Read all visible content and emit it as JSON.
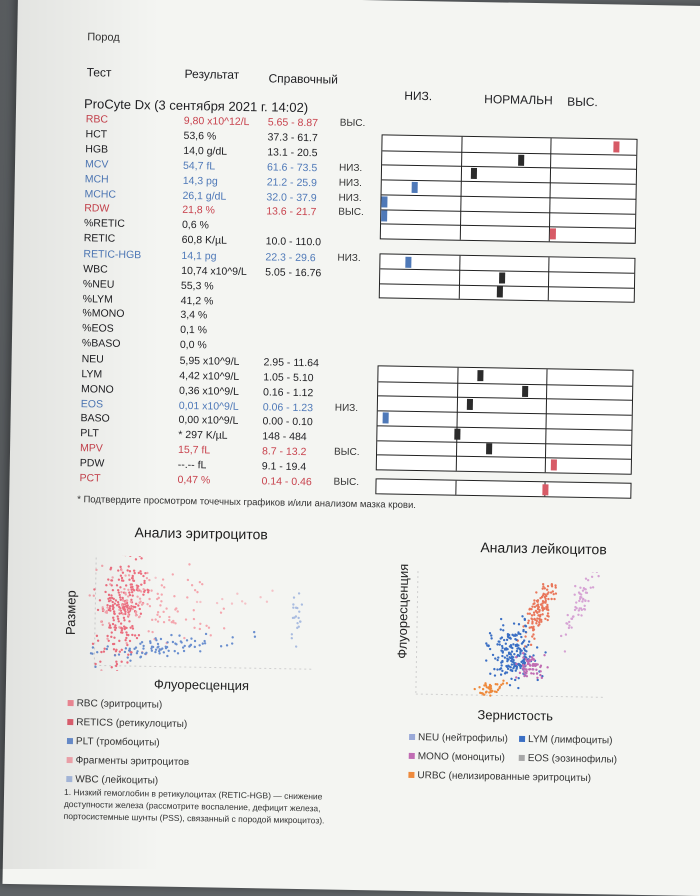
{
  "top_cut_text": "Пород",
  "header": {
    "test": "Тест",
    "result": "Результат",
    "reference": "Справочный",
    "low": "НИЗ.",
    "normal": "НОРМАЛЬН",
    "high": "ВЫС."
  },
  "analyzer_title": "ProCyte Dx (3 сентября 2021 г. 14:02)",
  "rows": [
    {
      "test": "RBC",
      "result": "9,80 x10^12/L",
      "ref": "5.65 - 8.87",
      "flag": "ВЫС.",
      "color": "#c8434e"
    },
    {
      "test": "HCT",
      "result": "53,6 %",
      "ref": "37.3 - 61.7",
      "flag": "",
      "color": "#1e1e22"
    },
    {
      "test": "HGB",
      "result": "14,0 g/dL",
      "ref": "13.1 - 20.5",
      "flag": "",
      "color": "#1e1e22"
    },
    {
      "test": "MCV",
      "result": "54,7 fL",
      "ref": "61.6 - 73.5",
      "flag": "НИЗ.",
      "color": "#4f79b8"
    },
    {
      "test": "MCH",
      "result": "14,3 pg",
      "ref": "21.2 - 25.9",
      "flag": "НИЗ.",
      "color": "#4f79b8"
    },
    {
      "test": "MCHC",
      "result": "26,1 g/dL",
      "ref": "32.0 - 37.9",
      "flag": "НИЗ.",
      "color": "#4f79b8"
    },
    {
      "test": "RDW",
      "result": "21,8 %",
      "ref": "13.6 - 21.7",
      "flag": "ВЫС.",
      "color": "#c8434e"
    },
    {
      "test": "%RETIC",
      "result": "0,6 %",
      "ref": "",
      "flag": "",
      "color": "#1e1e22"
    },
    {
      "test": "RETIC",
      "result": "60,8 K/µL",
      "ref": "10.0 - 110.0",
      "flag": "",
      "color": "#1e1e22"
    },
    {
      "test": "RETIC-HGB",
      "result": "14,1 pg",
      "ref": "22.3 - 29.6",
      "flag": "НИЗ.",
      "color": "#4f79b8"
    },
    {
      "test": "WBC",
      "result": "10,74 x10^9/L",
      "ref": "5.05 - 16.76",
      "flag": "",
      "color": "#1e1e22"
    },
    {
      "test": "%NEU",
      "result": "55,3 %",
      "ref": "",
      "flag": "",
      "color": "#1e1e22"
    },
    {
      "test": "%LYM",
      "result": "41,2 %",
      "ref": "",
      "flag": "",
      "color": "#1e1e22"
    },
    {
      "test": "%MONO",
      "result": "3,4 %",
      "ref": "",
      "flag": "",
      "color": "#1e1e22"
    },
    {
      "test": "%EOS",
      "result": "0,1 %",
      "ref": "",
      "flag": "",
      "color": "#1e1e22"
    },
    {
      "test": "%BASO",
      "result": "0,0 %",
      "ref": "",
      "flag": "",
      "color": "#1e1e22"
    },
    {
      "test": "NEU",
      "result": "5,95 x10^9/L",
      "ref": "2.95 - 11.64",
      "flag": "",
      "color": "#1e1e22"
    },
    {
      "test": "LYM",
      "result": "4,42 x10^9/L",
      "ref": "1.05 - 5.10",
      "flag": "",
      "color": "#1e1e22"
    },
    {
      "test": "MONO",
      "result": "0,36 x10^9/L",
      "ref": "0.16 - 1.12",
      "flag": "",
      "color": "#1e1e22"
    },
    {
      "test": "EOS",
      "result": "0,01 x10^9/L",
      "ref": "0.06 - 1.23",
      "flag": "НИЗ.",
      "color": "#4f79b8"
    },
    {
      "test": "BASO",
      "result": "0,00 x10^9/L",
      "ref": "0.00 - 0.10",
      "flag": "",
      "color": "#1e1e22"
    },
    {
      "test": "PLT",
      "result": "* 297 K/µL",
      "ref": "148 - 484",
      "flag": "",
      "color": "#1e1e22"
    },
    {
      "test": "MPV",
      "result": "15,7 fL",
      "ref": "8.7 - 13.2",
      "flag": "ВЫС.",
      "color": "#c8434e"
    },
    {
      "test": "PDW",
      "result": "--.-- fL",
      "ref": "9.1 - 19.4",
      "flag": "",
      "color": "#1e1e22"
    },
    {
      "test": "PCT",
      "result": "0,47 %",
      "ref": "0.14 - 0.46",
      "flag": "ВЫС.",
      "color": "#c8434e"
    }
  ],
  "bar_markers": {
    "group1": [
      0.93,
      0.55,
      0.36,
      0.12,
      0.0,
      0.0,
      0.68
    ],
    "group2": [
      0.1,
      0.48,
      0.47
    ],
    "group3": [
      0.4,
      0.58,
      0.36,
      0.02,
      0.31,
      0.44,
      0.7
    ],
    "group4": [
      0.67
    ]
  },
  "footnote": "* Подтвердите просмотром точечных графиков и/или анализом мазка крови.",
  "rbc_chart": {
    "title": "Анализ эритроцитов",
    "y_label": "Размер",
    "x_label": "Флуоресценция",
    "legend": [
      {
        "label": "RBC (эритроциты)",
        "color": "#f28a96"
      },
      {
        "label": "RETICS (ретикулоциты)",
        "color": "#e06070"
      },
      {
        "label": "PLT (тромбоциты)",
        "color": "#6a8fcf"
      },
      {
        "label": "Фрагменты эритроцитов",
        "color": "#f4a6ae"
      },
      {
        "label": "WBC (лейкоциты)",
        "color": "#a9bce0"
      }
    ]
  },
  "wbc_chart": {
    "title": "Анализ лейкоцитов",
    "y_label": "Флуоресценция",
    "x_label": "Зернистость",
    "legend": [
      {
        "label": "NEU (нейтрофилы)",
        "color": "#9aa9d8"
      },
      {
        "label": "LYM (лимфоциты)",
        "color": "#3b6fc4"
      },
      {
        "label": "MONO (моноциты)",
        "color": "#c06cb3"
      },
      {
        "label": "EOS (эозинофилы)",
        "color": "#a7a7a7"
      },
      {
        "label": "URBC (нелизированные эритроциты)",
        "color": "#ee8a3d"
      }
    ]
  },
  "note_lines": [
    "1. Низкий гемоглобин в ретикулоцитах (RETIC-HGB) — снижение",
    "доступности железа (рассмотрите воспаление, дефицит железа,",
    "портосистемные шунты (PSS), связанный с породой микроцитоз)."
  ]
}
